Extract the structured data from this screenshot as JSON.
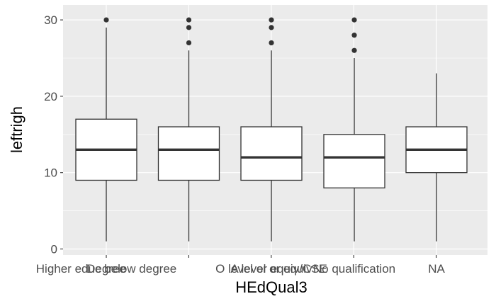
{
  "chart_data": {
    "type": "boxplot",
    "xlabel": "HEdQual3",
    "ylabel": "leftrigh",
    "ylim": [
      -0.4,
      31.2
    ],
    "yticks": [
      0,
      10,
      20,
      30
    ],
    "grid": true,
    "categories": [
      "Degree",
      "Higher educ below degree",
      "A level or equiv",
      "O level or equiv/CSE",
      "No qualification",
      "NA"
    ],
    "boxes": [
      {
        "category": "Degree",
        "whisker_low": 1,
        "q1": 9,
        "median": 13,
        "q3": 17,
        "whisker_high": 29,
        "outliers": [
          30
        ]
      },
      {
        "category": "Higher educ below degree",
        "whisker_low": 1,
        "q1": 9,
        "median": 13,
        "q3": 16,
        "whisker_high": 26,
        "outliers": [
          27,
          29,
          30
        ]
      },
      {
        "category": "A level or equiv",
        "whisker_low": 1,
        "q1": 9,
        "median": 12,
        "q3": 16,
        "whisker_high": 26,
        "outliers": [
          27,
          29,
          30
        ]
      },
      {
        "category": "O level or equiv/CSE",
        "whisker_low": 1,
        "q1": 8,
        "median": 12,
        "q3": 15,
        "whisker_high": 25,
        "outliers": [
          26,
          28,
          30
        ]
      },
      {
        "category": "No qualification",
        "whisker_low": 1,
        "q1": 10,
        "median": 13,
        "q3": 16,
        "whisker_high": 23,
        "outliers": []
      },
      {
        "category": "NA",
        "whisker_low": 1,
        "q1": 10,
        "median": 13,
        "q3": 16,
        "whisker_high": 23,
        "outliers": []
      }
    ],
    "colors": {
      "panel_bg": "#ebebeb",
      "grid_major": "#ffffff",
      "box_fill": "#ffffff",
      "box_line": "#333333",
      "tick_text": "#4d4d4d",
      "title_text": "#000000"
    }
  }
}
